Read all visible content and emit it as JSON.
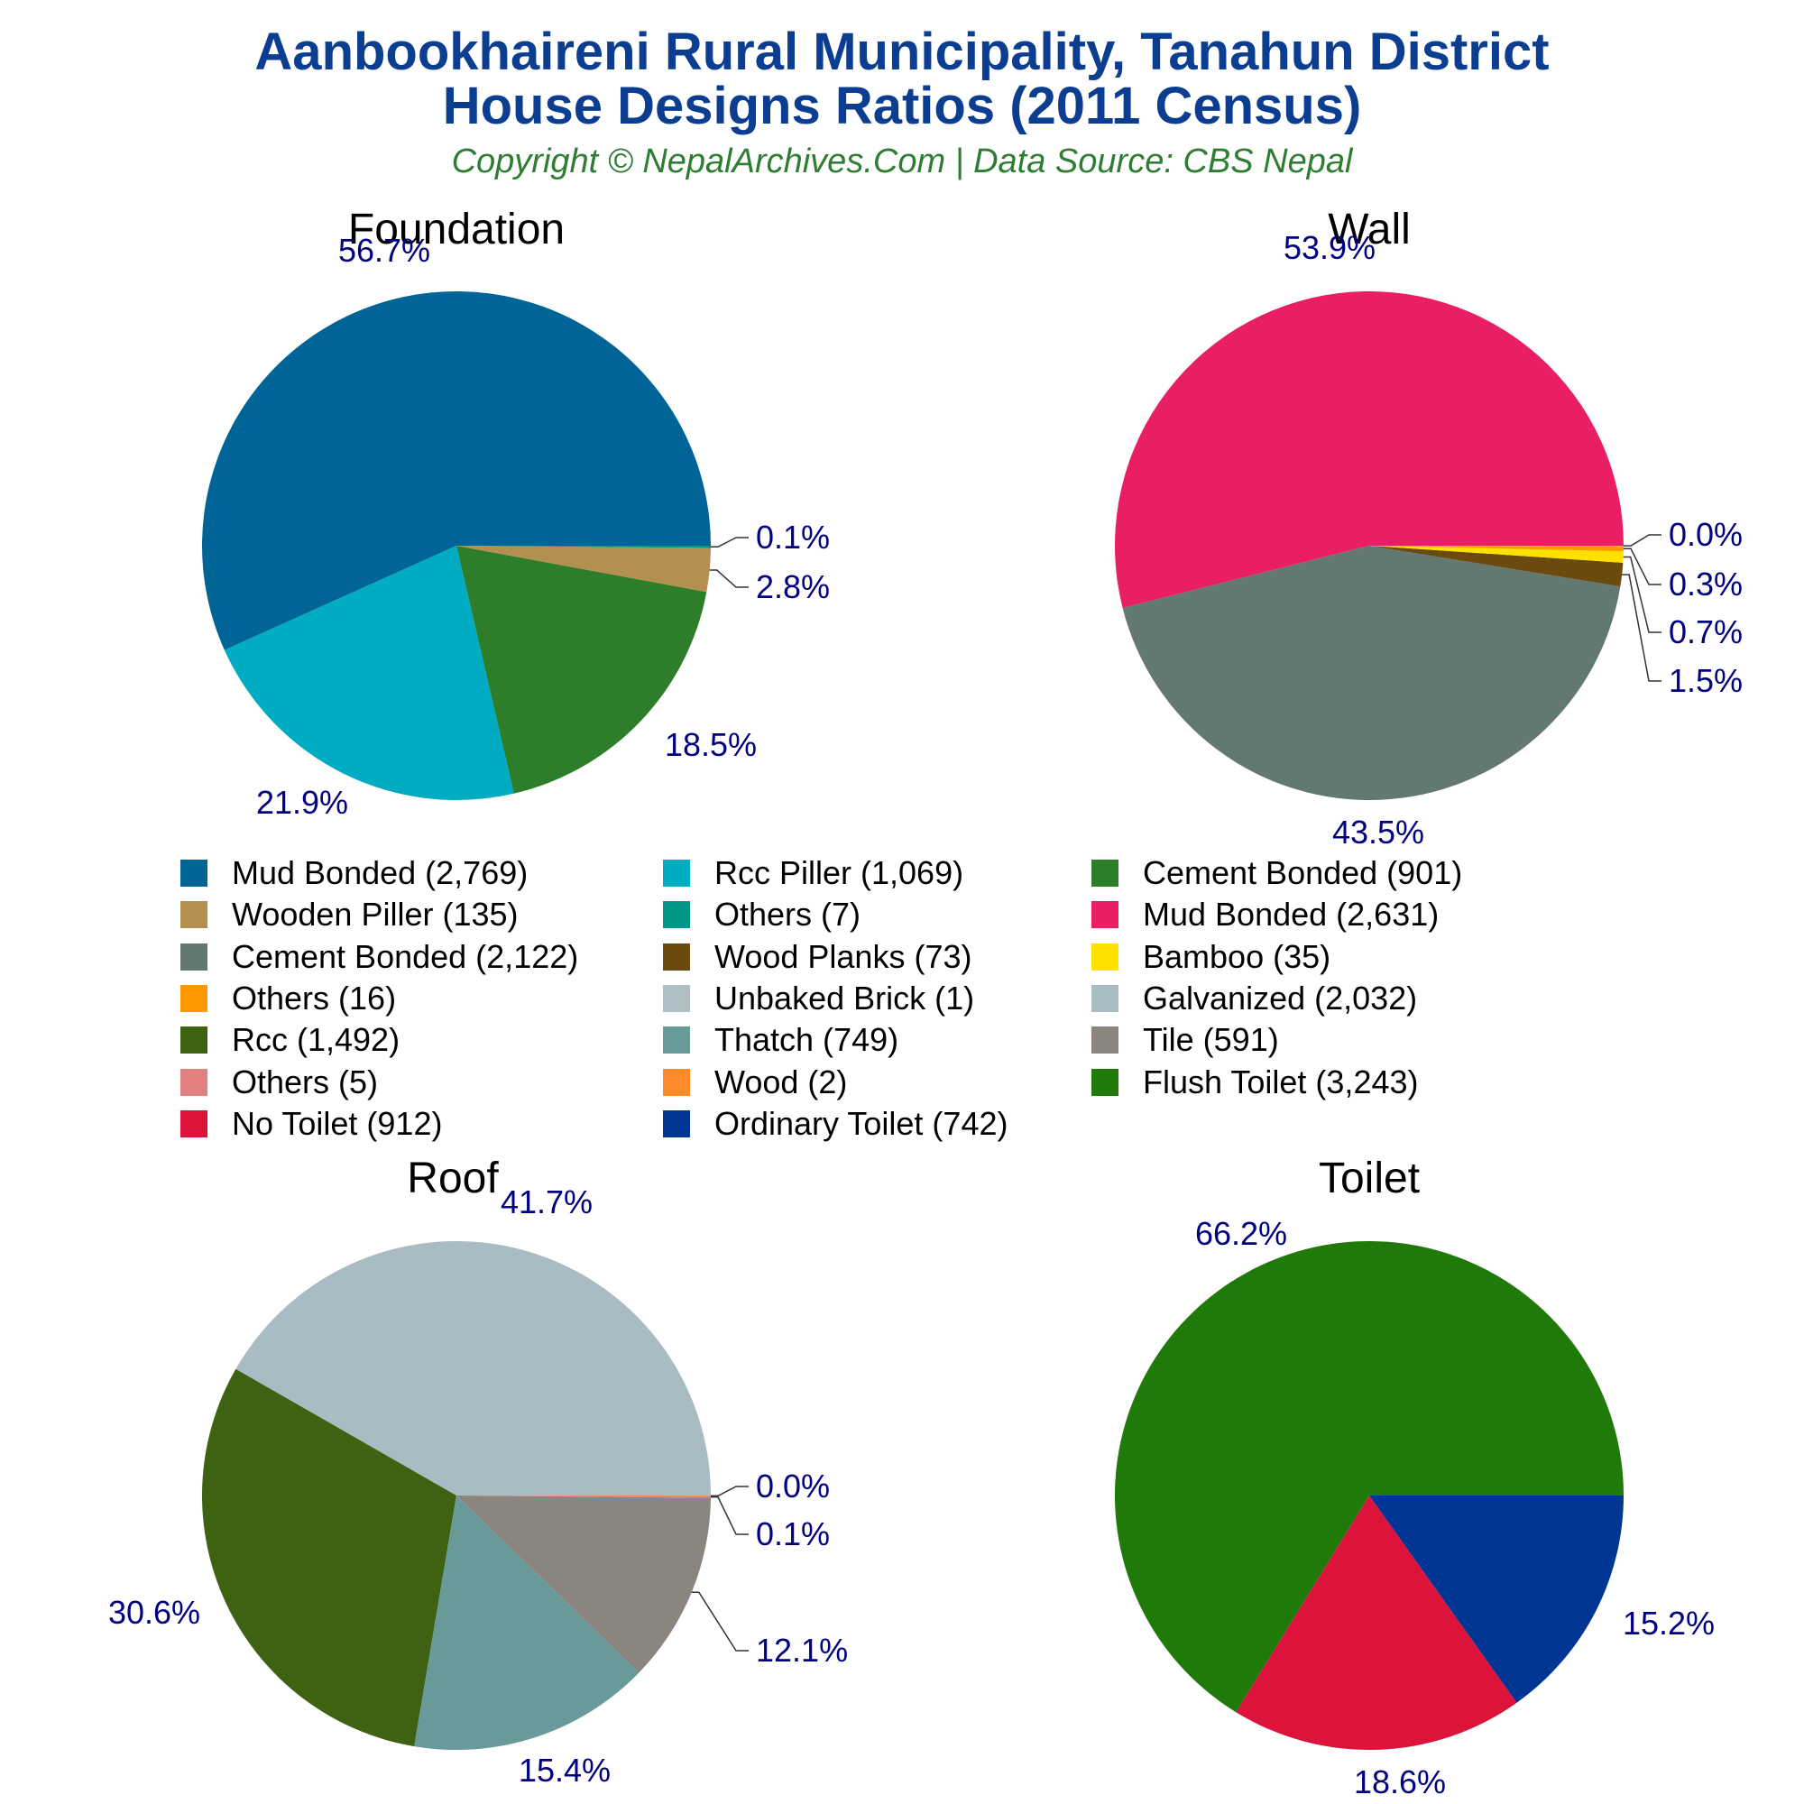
{
  "title_line1": "Aanbookhaireni Rural Municipality, Tanahun District",
  "title_line2": "House Designs Ratios (2011 Census)",
  "subtitle": "Copyright © NepalArchives.Com | Data Source: CBS Nepal",
  "colors": {
    "title": "#0b3d91",
    "subtitle": "#2e7d32",
    "pie_label": "#000080"
  },
  "legend": [
    {
      "label": "Mud Bonded (2,769)",
      "color": "#006496"
    },
    {
      "label": "Rcc Piller (1,069)",
      "color": "#00acc1"
    },
    {
      "label": "Cement Bonded (901)",
      "color": "#2e7d2a"
    },
    {
      "label": "Wooden Piller (135)",
      "color": "#b39050"
    },
    {
      "label": "Others (7)",
      "color": "#009688"
    },
    {
      "label": "Mud Bonded (2,631)",
      "color": "#e91e63"
    },
    {
      "label": "Cement Bonded (2,122)",
      "color": "#637970"
    },
    {
      "label": "Wood Planks (73)",
      "color": "#6b4a0e"
    },
    {
      "label": "Bamboo (35)",
      "color": "#ffe100"
    },
    {
      "label": "Others (16)",
      "color": "#ff9800"
    },
    {
      "label": "Unbaked Brick (1)",
      "color": "#b0bec5"
    },
    {
      "label": "Galvanized (2,032)",
      "color": "#a9bbc3"
    },
    {
      "label": "Rcc (1,492)",
      "color": "#3f6212"
    },
    {
      "label": "Thatch (749)",
      "color": "#689a99"
    },
    {
      "label": "Tile (591)",
      "color": "#8b8580"
    },
    {
      "label": "Others (5)",
      "color": "#e08080"
    },
    {
      "label": "Wood (2)",
      "color": "#ff8c2a"
    },
    {
      "label": "Flush Toilet (3,243)",
      "color": "#207a0a"
    },
    {
      "label": "No Toilet (912)",
      "color": "#dc143c"
    },
    {
      "label": "Ordinary Toilet (742)",
      "color": "#003594"
    }
  ],
  "chart_data": [
    {
      "type": "pie",
      "title": "Foundation",
      "slices": [
        {
          "name": "Mud Bonded",
          "value": 2769,
          "label": "56.7%",
          "color": "#006496"
        },
        {
          "name": "Rcc Piller",
          "value": 1069,
          "label": "21.9%",
          "color": "#00acc1"
        },
        {
          "name": "Cement Bonded",
          "value": 901,
          "label": "18.5%",
          "color": "#2e7d2a"
        },
        {
          "name": "Wooden Piller",
          "value": 135,
          "label": "2.8%",
          "color": "#b39050"
        },
        {
          "name": "Others",
          "value": 7,
          "label": "0.1%",
          "color": "#009688"
        }
      ]
    },
    {
      "type": "pie",
      "title": "Wall",
      "slices": [
        {
          "name": "Mud Bonded",
          "value": 2631,
          "label": "53.9%",
          "color": "#e91e63"
        },
        {
          "name": "Cement Bonded",
          "value": 2122,
          "label": "43.5%",
          "color": "#637970"
        },
        {
          "name": "Wood Planks",
          "value": 73,
          "label": "1.5%",
          "color": "#6b4a0e"
        },
        {
          "name": "Bamboo",
          "value": 35,
          "label": "0.7%",
          "color": "#ffe100"
        },
        {
          "name": "Others",
          "value": 16,
          "label": "0.3%",
          "color": "#ff9800"
        },
        {
          "name": "Unbaked Brick",
          "value": 1,
          "label": "0.0%",
          "color": "#b0bec5"
        }
      ]
    },
    {
      "type": "pie",
      "title": "Roof",
      "slices": [
        {
          "name": "Galvanized",
          "value": 2032,
          "label": "41.7%",
          "color": "#a9bbc3"
        },
        {
          "name": "Rcc",
          "value": 1492,
          "label": "30.6%",
          "color": "#3f6212"
        },
        {
          "name": "Thatch",
          "value": 749,
          "label": "15.4%",
          "color": "#689a99"
        },
        {
          "name": "Tile",
          "value": 591,
          "label": "12.1%",
          "color": "#8b8580"
        },
        {
          "name": "Others",
          "value": 5,
          "label": "0.1%",
          "color": "#e08080"
        },
        {
          "name": "Wood",
          "value": 2,
          "label": "0.0%",
          "color": "#ff8c2a"
        }
      ]
    },
    {
      "type": "pie",
      "title": "Toilet",
      "slices": [
        {
          "name": "Flush Toilet",
          "value": 3243,
          "label": "66.2%",
          "color": "#207a0a"
        },
        {
          "name": "No Toilet",
          "value": 912,
          "label": "18.6%",
          "color": "#dc143c"
        },
        {
          "name": "Ordinary Toilet",
          "value": 742,
          "label": "15.2%",
          "color": "#003594"
        }
      ]
    }
  ]
}
